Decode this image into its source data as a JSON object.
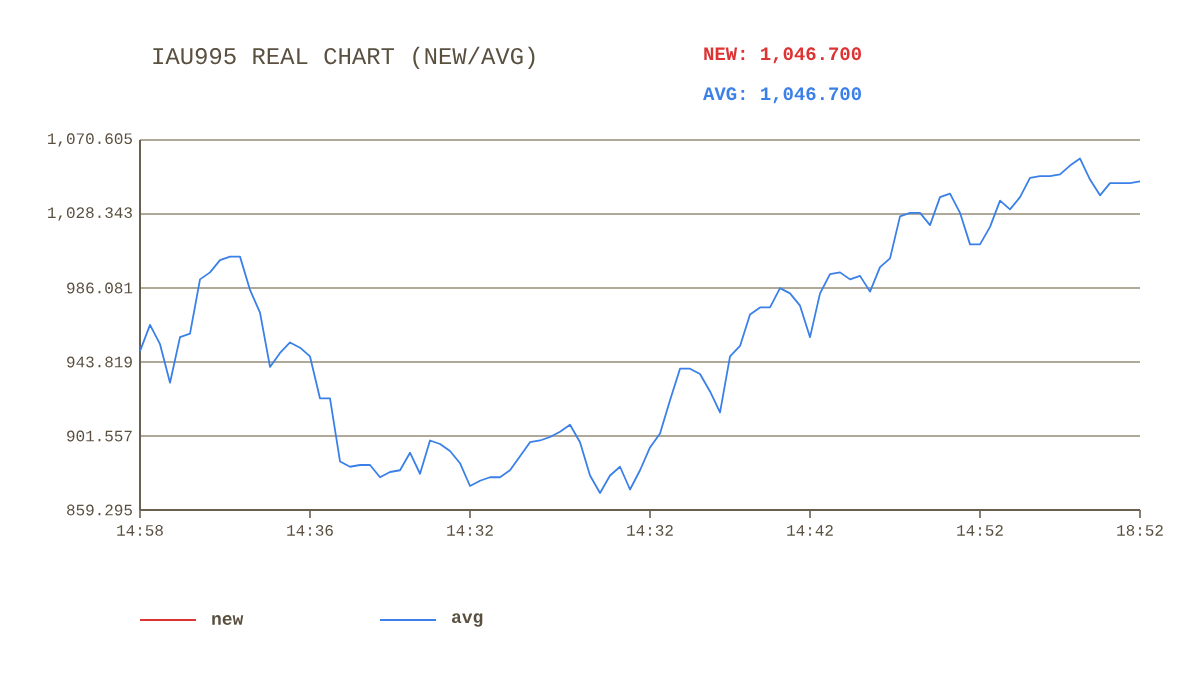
{
  "chart_data": {
    "type": "line",
    "title": "IAU995 REAL CHART (NEW/AVG)",
    "annotations": [
      "NEW: 1,046.700",
      "AVG: 1,046.700"
    ],
    "categories": [
      "14:58",
      null,
      null,
      null,
      null,
      null,
      null,
      null,
      null,
      null,
      null,
      null,
      null,
      null,
      null,
      null,
      null,
      "14:36",
      null,
      null,
      null,
      null,
      null,
      null,
      null,
      null,
      null,
      null,
      null,
      null,
      null,
      null,
      null,
      "14:32",
      null,
      null,
      null,
      null,
      null,
      null,
      null,
      null,
      null,
      null,
      null,
      null,
      null,
      null,
      null,
      null,
      null,
      "14:32",
      null,
      null,
      null,
      null,
      null,
      null,
      null,
      null,
      null,
      null,
      null,
      null,
      null,
      null,
      null,
      "14:42",
      null,
      null,
      null,
      null,
      null,
      null,
      null,
      null,
      null,
      null,
      null,
      null,
      null,
      null,
      null,
      null,
      "14:52",
      null,
      null,
      null,
      null,
      null,
      null,
      null,
      null,
      null,
      null,
      null,
      null,
      null,
      null,
      null,
      "18:52"
    ],
    "ylim": [
      859.295,
      1070.605
    ],
    "yticks": [
      {
        "value": 859.295,
        "label": "859.295"
      },
      {
        "value": 901.557,
        "label": "901.557"
      },
      {
        "value": 943.819,
        "label": "943.819"
      },
      {
        "value": 986.081,
        "label": "986.081"
      },
      {
        "value": 1028.343,
        "label": "1,028.343"
      },
      {
        "value": 1070.605,
        "label": "1,070.605"
      }
    ],
    "grid": "y",
    "legend": "bottom left",
    "series": [
      {
        "name": "new",
        "color": "#dd3333",
        "values": [
          null,
          null,
          null,
          null,
          null,
          null,
          null,
          null,
          null,
          null,
          null,
          null,
          null,
          null,
          null,
          null,
          null,
          null,
          null,
          null,
          null,
          null,
          null,
          null,
          null,
          null,
          null,
          null,
          null,
          null,
          null,
          null,
          null,
          null,
          null,
          null,
          null,
          null,
          null,
          null,
          null,
          null,
          null,
          null,
          null,
          null,
          null,
          null,
          null,
          null,
          null,
          null,
          null,
          null,
          null,
          null,
          null,
          null,
          null,
          null,
          null,
          null,
          null,
          null,
          null,
          null,
          null,
          null,
          null,
          null,
          null,
          null,
          null,
          null,
          null,
          null,
          null,
          null,
          null,
          null,
          null,
          null,
          null,
          null,
          null,
          null,
          null,
          null,
          null,
          null,
          null,
          null,
          null,
          null,
          null,
          null,
          null,
          null,
          null,
          null,
          null
        ]
      },
      {
        "name": "avg",
        "color": "#3a80e8",
        "values": [
          950,
          965,
          954,
          932,
          958,
          960,
          991,
          995,
          1002,
          1004,
          1004,
          985,
          972,
          941,
          949,
          955,
          952,
          947,
          923,
          923,
          887,
          884,
          885,
          885,
          878,
          881,
          882,
          892,
          880,
          899,
          897,
          893,
          886,
          873,
          876,
          878,
          878,
          882,
          890,
          898,
          899,
          901,
          904,
          908,
          898,
          879,
          869,
          879,
          884,
          871,
          882,
          895,
          903,
          922,
          940,
          940,
          937,
          927,
          915,
          947,
          953,
          971,
          975,
          975,
          986,
          983,
          976,
          958,
          983,
          994,
          995,
          991,
          993,
          984,
          998,
          1003,
          1027,
          1029,
          1029,
          1022,
          1038,
          1040,
          1029,
          1011,
          1011,
          1021,
          1036,
          1031,
          1038,
          1049,
          1050,
          1050,
          1051,
          1056,
          1060,
          1048,
          1039,
          1046,
          1046,
          1046,
          1047
        ]
      }
    ]
  }
}
